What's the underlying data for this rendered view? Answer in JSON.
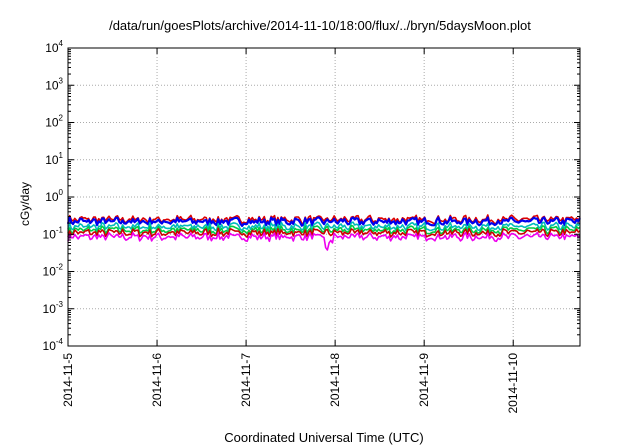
{
  "chart_data": {
    "type": "line",
    "title": "/data/run/goesPlots/archive/2014-11-10/18:00/flux/../bryn/5daysMoon.plot",
    "xlabel": "Coordinated Universal Time (UTC)",
    "ylabel": "cGy/day",
    "yscale": "log",
    "ylim": [
      0.0001,
      10000
    ],
    "x_ticks": [
      "2014-11-5",
      "2014-11-6",
      "2014-11-7",
      "2014-11-8",
      "2014-11-9",
      "2014-11-10"
    ],
    "xlim": [
      "2014-11-05 00:00",
      "2014-11-10 18:00"
    ],
    "y_ticks": [
      {
        "base": "10",
        "exp": "4"
      },
      {
        "base": "10",
        "exp": "3"
      },
      {
        "base": "10",
        "exp": "2"
      },
      {
        "base": "10",
        "exp": "1"
      },
      {
        "base": "10",
        "exp": "0"
      },
      {
        "base": "10",
        "exp": "-1"
      },
      {
        "base": "10",
        "exp": "-2"
      },
      {
        "base": "10",
        "exp": "-3"
      },
      {
        "base": "10",
        "exp": "-4"
      }
    ],
    "grid": true,
    "colors": [
      "#dd0000",
      "#0000ee",
      "#00bbbb",
      "#00cc44",
      "#cc0000",
      "#ee00ee"
    ],
    "series": [
      {
        "color": "#dd0000",
        "approx_level": 0.25,
        "x_range": [
          "2014-11-05",
          "2014-11-10 18:00"
        ]
      },
      {
        "color": "#0000ee",
        "approx_level": 0.22,
        "x_range": [
          "2014-11-05",
          "2014-11-10 18:00"
        ]
      },
      {
        "color": "#00bbbb",
        "approx_level": 0.16,
        "x_range": [
          "2014-11-05",
          "2014-11-10 18:00"
        ]
      },
      {
        "color": "#00cc44",
        "approx_level": 0.13,
        "x_range": [
          "2014-11-05",
          "2014-11-10 18:00"
        ]
      },
      {
        "color": "#cc0000",
        "approx_level": 0.11,
        "x_range": [
          "2014-11-05",
          "2014-11-10 18:00"
        ]
      },
      {
        "color": "#ee00ee",
        "approx_level": 0.085,
        "x_range": [
          "2014-11-05",
          "2014-11-10 18:00"
        ]
      }
    ]
  }
}
